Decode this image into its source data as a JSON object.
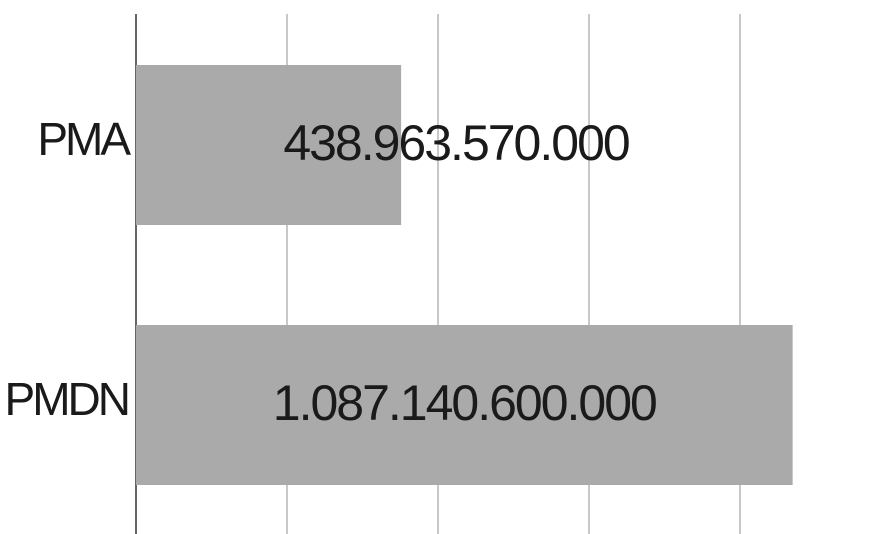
{
  "chart_data": {
    "type": "bar",
    "orientation": "horizontal",
    "categories": [
      "PMA",
      "PMDN"
    ],
    "values": [
      438963570000,
      1087140600000
    ],
    "value_labels": [
      "438.963.570.000",
      "1.087.140.600.000"
    ],
    "color": "#aaaaaa",
    "xlim": [
      0,
      1250000000000
    ],
    "xticks": [
      0,
      250000000000,
      500000000000,
      750000000000,
      1000000000000
    ],
    "grid": true
  }
}
